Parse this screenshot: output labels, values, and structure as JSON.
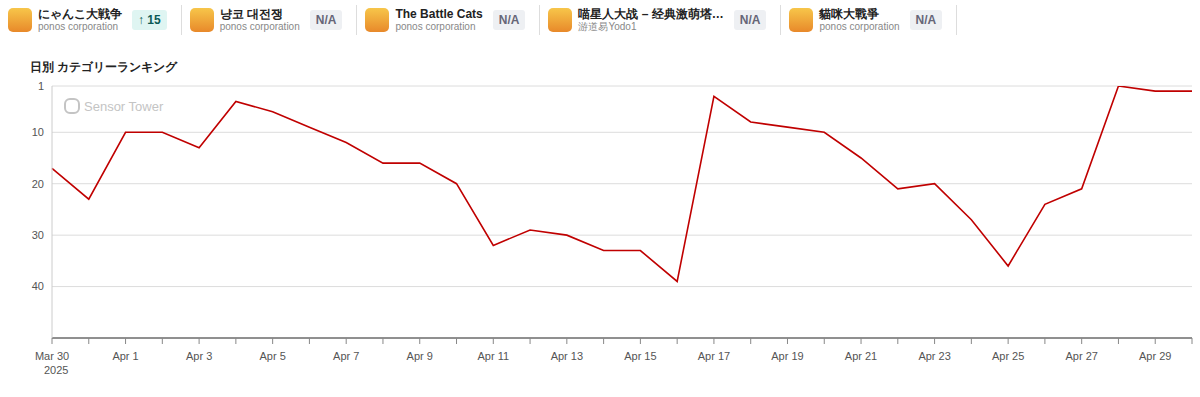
{
  "header": {
    "apps": [
      {
        "name": "にゃんこ大戦争",
        "publisher": "ponos corporation",
        "badge": "↑ 15"
      },
      {
        "name": "냥코 대전쟁",
        "publisher": "ponos corporation",
        "badge": "N/A"
      },
      {
        "name": "The Battle Cats",
        "publisher": "ponos corporation",
        "badge": "N/A"
      },
      {
        "name": "喵星人大战 – 经典激萌塔…",
        "publisher": "游道易Yodo1",
        "badge": "N/A"
      },
      {
        "name": "貓咪大戰爭",
        "publisher": "ponos corporation",
        "badge": "N/A"
      }
    ]
  },
  "chart_data": {
    "type": "line",
    "title": "日別 カテゴリーランキング",
    "watermark": "Sensor Tower",
    "categories": [
      "Mar 30",
      null,
      "Apr 1",
      null,
      "Apr 3",
      null,
      "Apr 5",
      null,
      "Apr 7",
      null,
      "Apr 9",
      null,
      "Apr 11",
      null,
      "Apr 13",
      null,
      "Apr 15",
      null,
      "Apr 17",
      null,
      "Apr 19",
      null,
      "Apr 21",
      null,
      "Apr 23",
      null,
      "Apr 25",
      null,
      "Apr 27",
      null,
      "Apr 29",
      null
    ],
    "values": [
      17,
      23,
      10,
      10,
      13,
      4,
      6,
      9,
      12,
      16,
      16,
      20,
      32,
      29,
      30,
      33,
      33,
      39,
      3,
      8,
      9,
      10,
      15,
      21,
      20,
      27,
      36,
      24,
      21,
      1,
      2,
      2
    ],
    "color": "#c00000",
    "ylim": [
      50,
      1
    ],
    "yticks": [
      1,
      10,
      20,
      30,
      40
    ],
    "grid": true,
    "annotations": [
      {
        "text": "2025",
        "x": "Mar 30"
      }
    ]
  }
}
